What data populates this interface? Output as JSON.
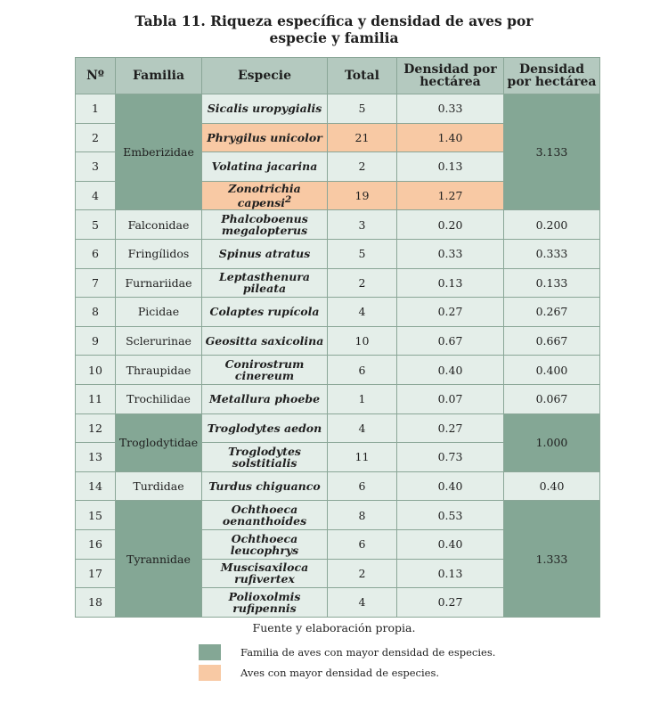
{
  "title_line1": "Tabla 11. Riqueza específica y densidad de aves por",
  "title_line2": "especie y familia",
  "headers": [
    "Nº",
    "Familia",
    "Especie",
    "Total",
    "Densidad por hectárea",
    "Densidad por hectárea"
  ],
  "rows": [
    {
      "n": "1",
      "familia": "Emberizidae",
      "especie": "Sicalis uropygialis",
      "total": "5",
      "dens": "0.33",
      "densfam": "3.133"
    },
    {
      "n": "2",
      "familia": "",
      "especie": "Phrygilus unicolor",
      "total": "21",
      "dens": "1.40",
      "densfam": ""
    },
    {
      "n": "3",
      "familia": "",
      "especie": "Volatina jacarina",
      "total": "2",
      "dens": "0.13",
      "densfam": ""
    },
    {
      "n": "4",
      "familia": "",
      "especie": "Zonotrichia capensi",
      "especie_sup": "2",
      "total": "19",
      "dens": "1.27",
      "densfam": ""
    },
    {
      "n": "5",
      "familia": "Falconidae",
      "especie": "Phalcoboenus megalopterus",
      "total": "3",
      "dens": "0.20",
      "densfam": "0.200"
    },
    {
      "n": "6",
      "familia": "Fringílidos",
      "especie": "Spinus atratus",
      "total": "5",
      "dens": "0.33",
      "densfam": "0.333"
    },
    {
      "n": "7",
      "familia": "Furnariidae",
      "especie": "Leptasthenura pileata",
      "total": "2",
      "dens": "0.13",
      "densfam": "0.133"
    },
    {
      "n": "8",
      "familia": "Picidae",
      "especie": "Colaptes rupícola",
      "total": "4",
      "dens": "0.27",
      "densfam": "0.267"
    },
    {
      "n": "9",
      "familia": "Sclerurinae",
      "especie": "Geositta saxicolina",
      "total": "10",
      "dens": "0.67",
      "densfam": "0.667"
    },
    {
      "n": "10",
      "familia": "Thraupidae",
      "especie": "Conirostrum cinereum",
      "total": "6",
      "dens": "0.40",
      "densfam": "0.400"
    },
    {
      "n": "11",
      "familia": "Trochilidae",
      "especie": "Metallura phoebe",
      "total": "1",
      "dens": "0.07",
      "densfam": "0.067"
    },
    {
      "n": "12",
      "familia": "Troglodytidae",
      "especie": "Troglodytes aedon",
      "total": "4",
      "dens": "0.27",
      "densfam": "1.000"
    },
    {
      "n": "13",
      "familia": "",
      "especie": "Troglodytes solstitialis",
      "total": "11",
      "dens": "0.73",
      "densfam": ""
    },
    {
      "n": "14",
      "familia": "Turdidae",
      "especie": "Turdus chiguanco",
      "total": "6",
      "dens": "0.40",
      "densfam": "0.40"
    },
    {
      "n": "15",
      "familia": "Tyrannidae",
      "especie": "Ochthoeca oenanthoides",
      "total": "8",
      "dens": "0.53",
      "densfam": "1.333"
    },
    {
      "n": "16",
      "familia": "",
      "especie": "Ochthoeca leucophrys",
      "total": "6",
      "dens": "0.40",
      "densfam": ""
    },
    {
      "n": "17",
      "familia": "",
      "especie": "Muscisaxiloca rufivertex",
      "total": "2",
      "dens": "0.13",
      "densfam": ""
    },
    {
      "n": "18",
      "familia": "",
      "especie": "Polioxolmis rufipennis",
      "total": "4",
      "dens": "0.27",
      "densfam": ""
    }
  ],
  "caption": "Fuente y elaboración propia.",
  "legend": [
    {
      "color": "#84a795",
      "text": "Familia de aves con mayor densidad de especies."
    },
    {
      "color": "#f8c9a4",
      "text": "Aves con mayor densidad de especies."
    }
  ],
  "colors": {
    "header": "#b4c9bf",
    "cell": "#e4eee9",
    "family_highlight": "#84a795",
    "species_highlight": "#f8c9a4"
  }
}
